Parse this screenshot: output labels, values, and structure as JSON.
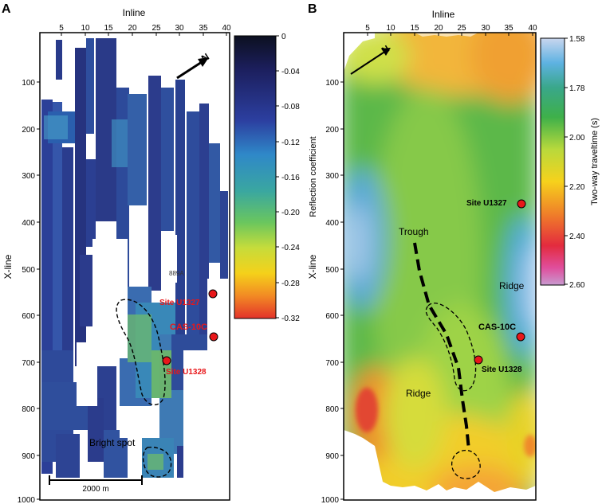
{
  "panels": {
    "a": {
      "letter": "A",
      "xlabel": "Inline",
      "ylabel": "X-line",
      "inline_ticks": [
        "5",
        "10",
        "15",
        "20",
        "25",
        "30",
        "35",
        "40"
      ],
      "xline_ticks": [
        "100",
        "200",
        "300",
        "400",
        "500",
        "600",
        "700",
        "800",
        "900",
        "1000"
      ],
      "labels": {
        "bright_spot": "Bright spot",
        "site_u1327": "Site U1327",
        "cas_10c": "CAS-10C",
        "site_u1328": "Site U1328",
        "sb_label": "889A"
      },
      "scale_bar": "2000 m",
      "north": "N",
      "colorbar": {
        "title": "Reflection coefficient",
        "ticks": [
          "0",
          "-0.04",
          "-0.08",
          "-0.12",
          "-0.16",
          "-0.20",
          "-0.24",
          "-0.28",
          "-0.32"
        ]
      }
    },
    "b": {
      "letter": "B",
      "xlabel": "Inline",
      "ylabel": "X-line",
      "inline_ticks": [
        "5",
        "10",
        "15",
        "20",
        "25",
        "30",
        "35",
        "40"
      ],
      "xline_ticks": [
        "100",
        "200",
        "300",
        "400",
        "500",
        "600",
        "700",
        "800",
        "900",
        "1000"
      ],
      "labels": {
        "trough": "Trough",
        "ridge_right": "Ridge",
        "ridge_left": "Ridge",
        "site_u1327": "Site U1327",
        "cas_10c": "CAS-10C",
        "site_u1328": "Site U1328"
      },
      "north": "N",
      "colorbar": {
        "title": "Two-way traveltime (s)",
        "ticks": [
          "1.58",
          "1.78",
          "2.00",
          "2.20",
          "2.40",
          "2.60"
        ]
      }
    }
  },
  "colors": {
    "site_marker": "#e8171a",
    "frame": "#000000"
  }
}
